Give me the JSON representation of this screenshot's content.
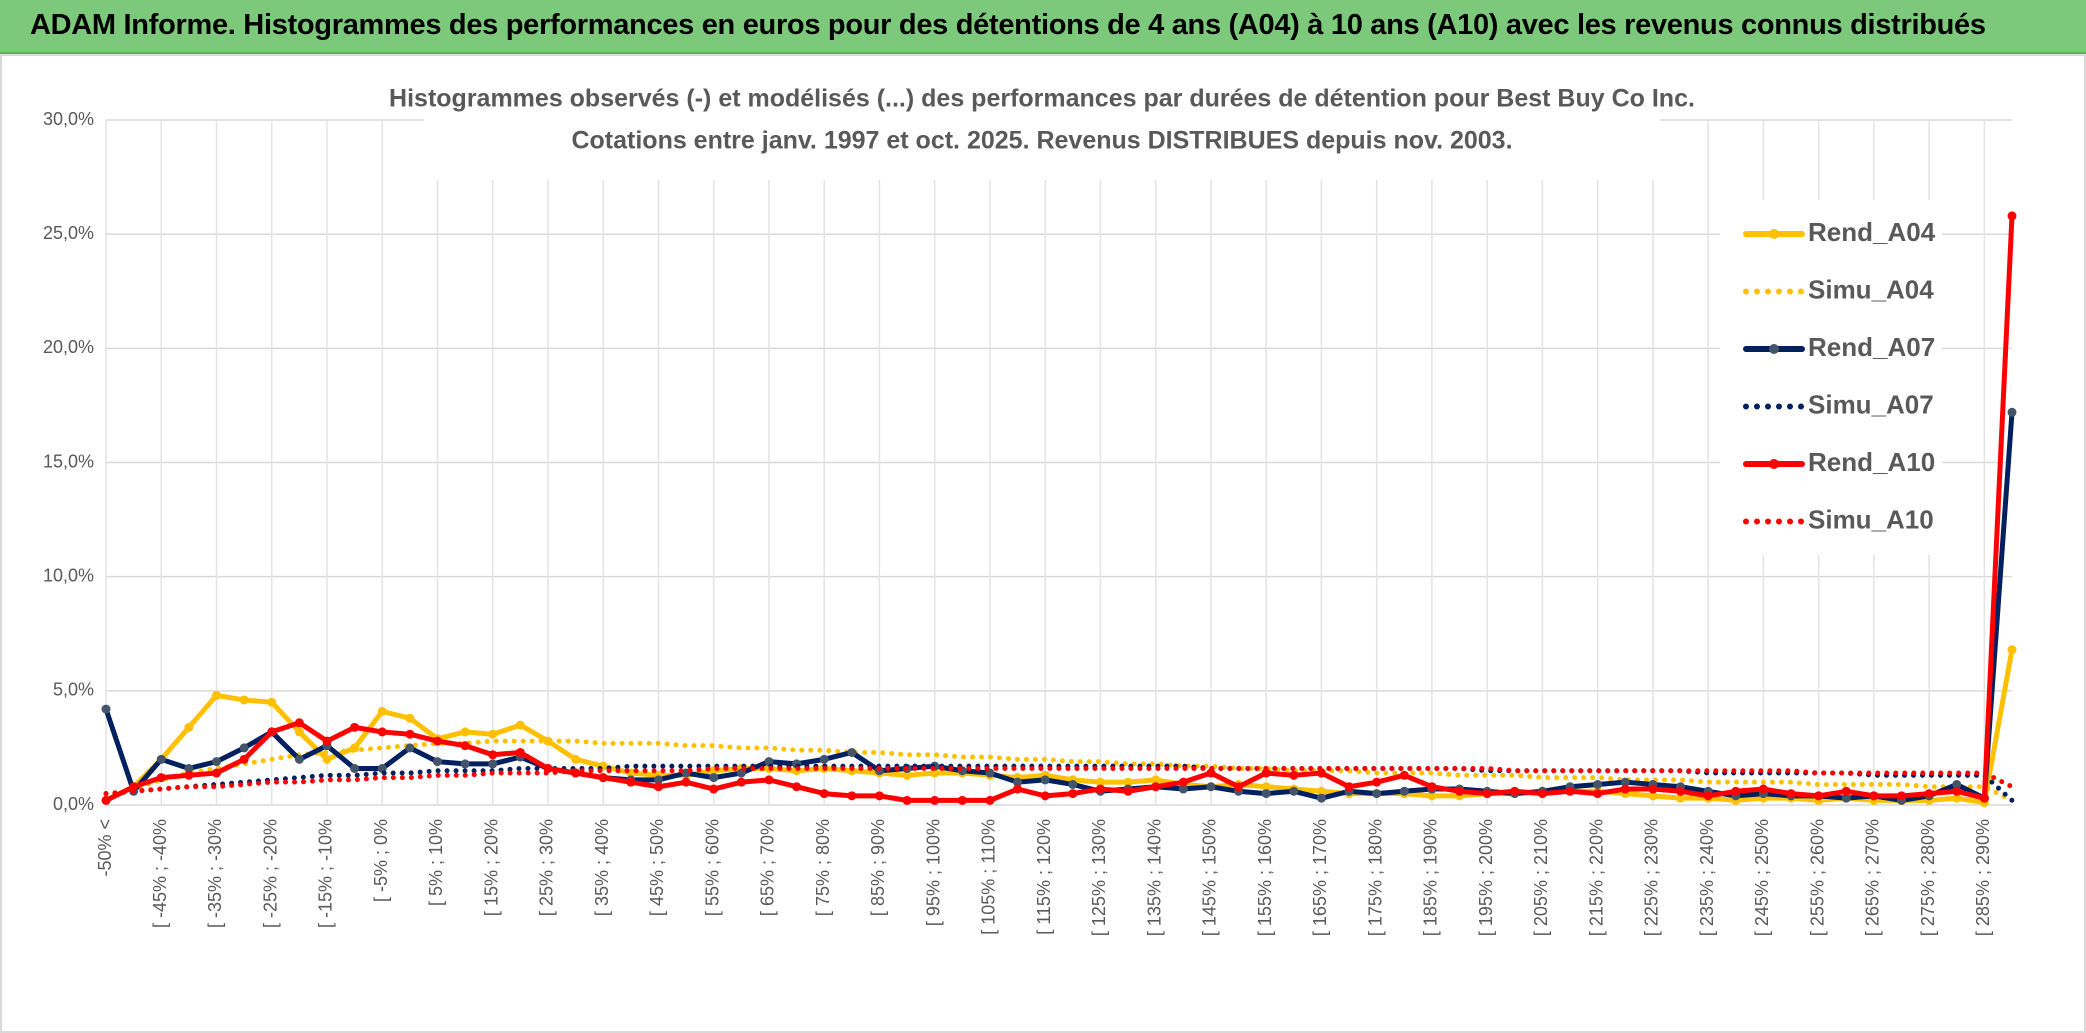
{
  "header": {
    "title": "ADAM Informe. Histogrammes des performances en euros pour des détentions de 4 ans (A04) à 10 ans (A10) avec les revenus connus distribués"
  },
  "chart_data": {
    "type": "line",
    "title": "Histogrammes observés (-) et modélisés (...) des performances par durées de détention pour Best Buy Co Inc.",
    "subtitle": "Cotations entre janv. 1997 et oct. 2025. Revenus DISTRIBUES depuis nov. 2003.",
    "categories": [
      "-50% <",
      null,
      "[ -45% ; -40%",
      null,
      "[ -35% ; -30%",
      null,
      "[ -25% ; -20%",
      null,
      "[ -15% ; -10%",
      null,
      "[ -5% ; 0%",
      null,
      "[ 5% ; 10%",
      null,
      "[ 15% ; 20%",
      null,
      "[ 25% ; 30%",
      null,
      "[ 35% ; 40%",
      null,
      "[ 45% ; 50%",
      null,
      "[ 55% ; 60%",
      null,
      "[ 65% ; 70%",
      null,
      "[ 75% ; 80%",
      null,
      "[ 85% ; 90%",
      null,
      "[ 95% ; 100%",
      null,
      "[ 105% ; 110%",
      null,
      "[ 115% ; 120%",
      null,
      "[ 125% ; 130%",
      null,
      "[ 135% ; 140%",
      null,
      "[ 145% ; 150%",
      null,
      "[ 155% ; 160%",
      null,
      "[ 165% ; 170%",
      null,
      "[ 175% ; 180%",
      null,
      "[ 185% ; 190%",
      null,
      "[ 195% ; 200%",
      null,
      "[ 205% ; 210%",
      null,
      "[ 215% ; 220%",
      null,
      "[ 225% ; 230%",
      null,
      "[ 235% ; 240%",
      null,
      "[ 245% ; 250%",
      null,
      "[ 255% ; 260%",
      null,
      "[ 265% ; 270%",
      null,
      "[ 275% ; 280%",
      null,
      "[ 285% ; 290%",
      null
    ],
    "series": [
      {
        "name": "Rend_A04",
        "color": "#ffc000",
        "style": "solid",
        "values": [
          0.2,
          0.8,
          2.0,
          3.4,
          4.8,
          4.6,
          4.5,
          3.2,
          2.0,
          2.5,
          4.1,
          3.8,
          2.9,
          3.2,
          3.1,
          3.5,
          2.8,
          2.0,
          1.7,
          1.4,
          1.3,
          1.3,
          1.5,
          1.6,
          1.6,
          1.5,
          1.6,
          1.5,
          1.4,
          1.3,
          1.4,
          1.4,
          1.3,
          1.2,
          1.3,
          1.1,
          1.0,
          1.0,
          1.1,
          0.9,
          0.8,
          0.9,
          0.8,
          0.7,
          0.6,
          0.5,
          0.5,
          0.5,
          0.4,
          0.4,
          0.5,
          0.5,
          0.6,
          0.6,
          0.6,
          0.5,
          0.4,
          0.3,
          0.3,
          0.2,
          0.3,
          0.3,
          0.2,
          0.3,
          0.2,
          0.2,
          0.2,
          0.3,
          0.1,
          6.8
        ]
      },
      {
        "name": "Simu_A04",
        "color": "#ffc000",
        "style": "dotted",
        "values": [
          0.3,
          0.7,
          1.1,
          1.4,
          1.6,
          1.8,
          2.0,
          2.2,
          2.3,
          2.4,
          2.5,
          2.6,
          2.7,
          2.7,
          2.8,
          2.8,
          2.8,
          2.8,
          2.7,
          2.7,
          2.7,
          2.6,
          2.6,
          2.5,
          2.5,
          2.4,
          2.4,
          2.3,
          2.3,
          2.2,
          2.2,
          2.1,
          2.1,
          2.0,
          2.0,
          1.9,
          1.9,
          1.8,
          1.8,
          1.7,
          1.7,
          1.6,
          1.6,
          1.5,
          1.5,
          1.5,
          1.4,
          1.4,
          1.4,
          1.3,
          1.3,
          1.3,
          1.2,
          1.2,
          1.2,
          1.1,
          1.1,
          1.1,
          1.0,
          1.0,
          1.0,
          1.0,
          0.9,
          0.9,
          0.9,
          0.9,
          0.8,
          0.8,
          0.8,
          0.2
        ]
      },
      {
        "name": "Rend_A07",
        "color": "#002060",
        "style": "solid",
        "values": [
          4.2,
          0.6,
          2.0,
          1.6,
          1.9,
          2.5,
          3.2,
          2.0,
          2.6,
          1.6,
          1.6,
          2.5,
          1.9,
          1.8,
          1.8,
          2.1,
          1.6,
          1.4,
          1.2,
          1.1,
          1.1,
          1.4,
          1.2,
          1.4,
          1.9,
          1.8,
          2.0,
          2.3,
          1.5,
          1.6,
          1.7,
          1.5,
          1.4,
          1.0,
          1.1,
          0.9,
          0.6,
          0.7,
          0.8,
          0.7,
          0.8,
          0.6,
          0.5,
          0.6,
          0.3,
          0.6,
          0.5,
          0.6,
          0.7,
          0.7,
          0.6,
          0.5,
          0.6,
          0.8,
          0.9,
          1.0,
          0.9,
          0.8,
          0.6,
          0.4,
          0.5,
          0.4,
          0.4,
          0.3,
          0.4,
          0.2,
          0.4,
          0.9,
          0.3,
          17.2
        ]
      },
      {
        "name": "Simu_A07",
        "color": "#002060",
        "style": "dotted",
        "values": [
          0.5,
          0.6,
          0.7,
          0.8,
          0.9,
          1.0,
          1.1,
          1.2,
          1.3,
          1.3,
          1.4,
          1.4,
          1.5,
          1.5,
          1.5,
          1.6,
          1.6,
          1.6,
          1.6,
          1.7,
          1.7,
          1.7,
          1.7,
          1.7,
          1.7,
          1.7,
          1.7,
          1.7,
          1.7,
          1.7,
          1.7,
          1.7,
          1.7,
          1.7,
          1.7,
          1.7,
          1.7,
          1.7,
          1.7,
          1.7,
          1.6,
          1.6,
          1.6,
          1.6,
          1.6,
          1.6,
          1.6,
          1.6,
          1.6,
          1.6,
          1.5,
          1.5,
          1.5,
          1.5,
          1.5,
          1.5,
          1.5,
          1.5,
          1.4,
          1.4,
          1.4,
          1.4,
          1.4,
          1.4,
          1.3,
          1.3,
          1.3,
          1.3,
          1.3,
          0.2
        ]
      },
      {
        "name": "Rend_A10",
        "color": "#ff0000",
        "style": "solid",
        "values": [
          0.2,
          0.8,
          1.2,
          1.3,
          1.4,
          2.0,
          3.2,
          3.6,
          2.8,
          3.4,
          3.2,
          3.1,
          2.8,
          2.6,
          2.2,
          2.3,
          1.6,
          1.4,
          1.2,
          1.0,
          0.8,
          1.0,
          0.7,
          1.0,
          1.1,
          0.8,
          0.5,
          0.4,
          0.4,
          0.2,
          0.2,
          0.2,
          0.2,
          0.7,
          0.4,
          0.5,
          0.7,
          0.6,
          0.8,
          1.0,
          1.4,
          0.8,
          1.4,
          1.3,
          1.4,
          0.8,
          1.0,
          1.3,
          0.8,
          0.6,
          0.5,
          0.6,
          0.5,
          0.6,
          0.5,
          0.7,
          0.7,
          0.6,
          0.4,
          0.6,
          0.7,
          0.5,
          0.4,
          0.6,
          0.4,
          0.4,
          0.5,
          0.6,
          0.3,
          25.8
        ]
      },
      {
        "name": "Simu_A10",
        "color": "#ff0000",
        "style": "dotted",
        "values": [
          0.5,
          0.6,
          0.7,
          0.8,
          0.8,
          0.9,
          1.0,
          1.0,
          1.1,
          1.1,
          1.2,
          1.2,
          1.3,
          1.3,
          1.4,
          1.4,
          1.4,
          1.5,
          1.5,
          1.5,
          1.5,
          1.5,
          1.6,
          1.6,
          1.6,
          1.6,
          1.6,
          1.6,
          1.6,
          1.6,
          1.6,
          1.6,
          1.6,
          1.6,
          1.6,
          1.6,
          1.6,
          1.6,
          1.6,
          1.6,
          1.6,
          1.6,
          1.6,
          1.6,
          1.6,
          1.6,
          1.6,
          1.6,
          1.6,
          1.6,
          1.6,
          1.5,
          1.5,
          1.5,
          1.5,
          1.5,
          1.5,
          1.5,
          1.5,
          1.5,
          1.5,
          1.5,
          1.4,
          1.4,
          1.4,
          1.4,
          1.4,
          1.4,
          1.4,
          0.8
        ]
      }
    ],
    "ylim": [
      0,
      30
    ],
    "yticks": [
      {
        "value": 0,
        "label": "0,0%"
      },
      {
        "value": 5,
        "label": "5,0%"
      },
      {
        "value": 10,
        "label": "10,0%"
      },
      {
        "value": 15,
        "label": "15,0%"
      },
      {
        "value": 20,
        "label": "20,0%"
      },
      {
        "value": 25,
        "label": "25,0%"
      },
      {
        "value": 30,
        "label": "30,0%"
      }
    ],
    "grid": true,
    "legend": "right"
  }
}
